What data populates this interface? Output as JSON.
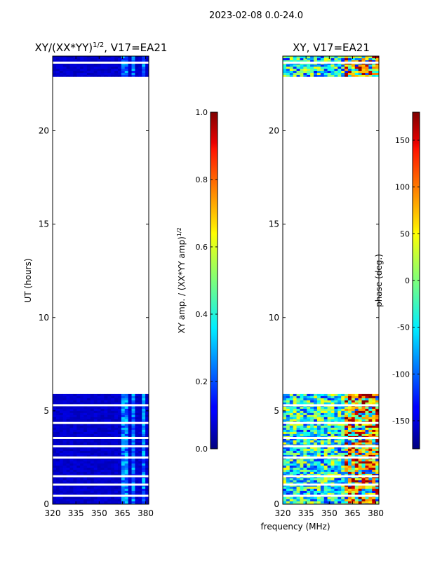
{
  "figure_title": "2023-02-08 0.0-24.0",
  "shared_xlabel": "frequency (MHz)",
  "chart_data": [
    {
      "type": "heatmap",
      "title": "XY/(XX*YY)",
      "title_exponent": "1/2",
      "title_suffix": ", V17=EA21",
      "ylabel": "UT (hours)",
      "xlim": [
        320,
        382
      ],
      "ylim": [
        0,
        24
      ],
      "xticks": [
        320,
        335,
        350,
        365,
        380
      ],
      "yticks": [
        0,
        5,
        10,
        15,
        20
      ],
      "colormap": "jet",
      "colorbar": {
        "label": "XY amp. / (XX*YY amp)",
        "label_exponent": "1/2",
        "range": [
          0.0,
          1.0
        ],
        "ticks": [
          "0.0",
          "0.2",
          "0.4",
          "0.6",
          "0.8",
          "1.0"
        ]
      },
      "data_bands_hours": [
        [
          0,
          5.9
        ],
        [
          22.9,
          24
        ]
      ],
      "blank_rows_hours": [
        3.1,
        3.55,
        0.45,
        1.05,
        1.5,
        2.5,
        4.35,
        5.3,
        23.65
      ],
      "bright_columns_mhz": [
        [
          364,
          368
        ],
        [
          371,
          373
        ],
        [
          377,
          379
        ]
      ],
      "typical_value": 0.05,
      "peak_value": 0.35
    },
    {
      "type": "heatmap",
      "title": "XY, V17=EA21",
      "xlim": [
        320,
        382
      ],
      "ylim": [
        0,
        24
      ],
      "xticks": [
        320,
        335,
        350,
        365,
        380
      ],
      "yticks": [
        0,
        5,
        10,
        15,
        20
      ],
      "colormap": "jet",
      "colorbar": {
        "label": "phase (deg.)",
        "range": [
          -180,
          180
        ],
        "ticks": [
          "-150",
          "-100",
          "-50",
          "0",
          "50",
          "100",
          "150"
        ]
      },
      "data_bands_hours": [
        [
          0,
          5.9
        ],
        [
          22.9,
          24
        ]
      ],
      "blank_rows_hours": [
        3.1,
        3.55,
        0.45,
        1.05,
        1.5,
        2.5,
        4.35,
        5.3,
        23.65
      ],
      "typical_value": -40,
      "value_spread": 180
    }
  ]
}
